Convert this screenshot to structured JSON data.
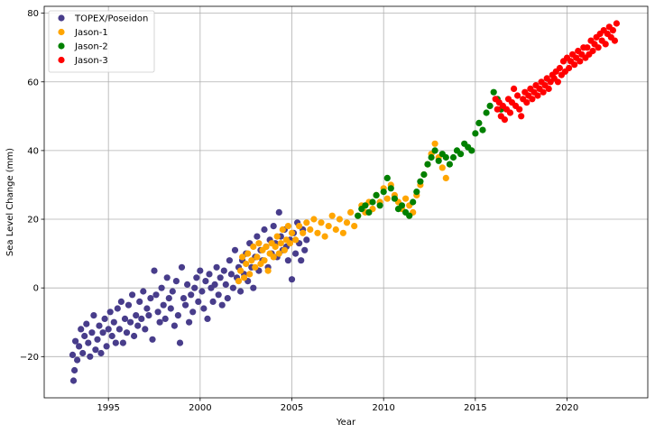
{
  "chart_data": {
    "type": "scatter",
    "title": "",
    "xlabel": "Year",
    "ylabel": "Sea Level Change (mm)",
    "xlim": [
      1991.5,
      2024.4
    ],
    "ylim": [
      -32,
      82
    ],
    "xticks": [
      1995,
      2000,
      2005,
      2010,
      2015,
      2020
    ],
    "yticks": [
      -20,
      0,
      20,
      40,
      60,
      80
    ],
    "grid": true,
    "legend_position": "top-left",
    "series": [
      {
        "name": "TOPEX/Poseidon",
        "color": "#483d8b",
        "x_range": [
          1993.0,
          2005.8
        ],
        "trend": "y = -21 + 2.8*(x-1993) approx., std 4 mm",
        "points": [
          [
            1993.05,
            -19.5
          ],
          [
            1993.1,
            -27
          ],
          [
            1993.15,
            -24
          ],
          [
            1993.2,
            -15.5
          ],
          [
            1993.3,
            -21
          ],
          [
            1993.4,
            -17
          ],
          [
            1993.5,
            -12
          ],
          [
            1993.6,
            -19
          ],
          [
            1993.7,
            -14
          ],
          [
            1993.8,
            -10.5
          ],
          [
            1993.9,
            -16
          ],
          [
            1994.0,
            -20
          ],
          [
            1994.1,
            -13
          ],
          [
            1994.2,
            -8
          ],
          [
            1994.3,
            -18
          ],
          [
            1994.4,
            -15
          ],
          [
            1994.5,
            -11
          ],
          [
            1994.6,
            -19
          ],
          [
            1994.7,
            -13
          ],
          [
            1994.8,
            -9
          ],
          [
            1994.9,
            -17
          ],
          [
            1995.0,
            -12
          ],
          [
            1995.1,
            -7
          ],
          [
            1995.2,
            -14
          ],
          [
            1995.3,
            -10
          ],
          [
            1995.4,
            -16
          ],
          [
            1995.5,
            -6
          ],
          [
            1995.6,
            -12
          ],
          [
            1995.7,
            -4
          ],
          [
            1995.8,
            -16
          ],
          [
            1995.9,
            -9
          ],
          [
            1996.0,
            -13
          ],
          [
            1996.1,
            -5
          ],
          [
            1996.2,
            -10
          ],
          [
            1996.3,
            -2
          ],
          [
            1996.4,
            -14
          ],
          [
            1996.5,
            -8
          ],
          [
            1996.6,
            -11
          ],
          [
            1996.7,
            -4
          ],
          [
            1996.8,
            -9
          ],
          [
            1996.9,
            -1
          ],
          [
            1997.0,
            -12
          ],
          [
            1997.1,
            -6
          ],
          [
            1997.2,
            -8
          ],
          [
            1997.3,
            -3
          ],
          [
            1997.4,
            -15
          ],
          [
            1997.5,
            5
          ],
          [
            1997.6,
            -2
          ],
          [
            1997.7,
            -7
          ],
          [
            1997.8,
            -10
          ],
          [
            1997.9,
            0
          ],
          [
            1998.0,
            -5
          ],
          [
            1998.1,
            -9
          ],
          [
            1998.2,
            3
          ],
          [
            1998.3,
            -3
          ],
          [
            1998.4,
            -6
          ],
          [
            1998.5,
            -1
          ],
          [
            1998.6,
            -11
          ],
          [
            1998.7,
            2
          ],
          [
            1998.8,
            -8
          ],
          [
            1998.9,
            -16
          ],
          [
            1999.0,
            6
          ],
          [
            1999.1,
            -3
          ],
          [
            1999.2,
            -5
          ],
          [
            1999.3,
            1
          ],
          [
            1999.4,
            -10
          ],
          [
            1999.5,
            -2
          ],
          [
            1999.6,
            -7
          ],
          [
            1999.7,
            0
          ],
          [
            1999.8,
            3
          ],
          [
            1999.9,
            -4
          ],
          [
            2000.0,
            5
          ],
          [
            2000.1,
            -1
          ],
          [
            2000.2,
            -6
          ],
          [
            2000.3,
            2
          ],
          [
            2000.4,
            -9
          ],
          [
            2000.5,
            4
          ],
          [
            2000.6,
            0
          ],
          [
            2000.7,
            -4
          ],
          [
            2000.8,
            1
          ],
          [
            2000.9,
            6
          ],
          [
            2001.0,
            -2
          ],
          [
            2001.1,
            3
          ],
          [
            2001.2,
            -5
          ],
          [
            2001.3,
            5
          ],
          [
            2001.4,
            1
          ],
          [
            2001.5,
            -3
          ],
          [
            2001.6,
            8
          ],
          [
            2001.7,
            4
          ],
          [
            2001.8,
            0
          ],
          [
            2001.9,
            11
          ],
          [
            2002.0,
            3
          ],
          [
            2002.1,
            6
          ],
          [
            2002.2,
            -1
          ],
          [
            2002.3,
            8
          ],
          [
            2002.4,
            4
          ],
          [
            2002.5,
            10
          ],
          [
            2002.6,
            2
          ],
          [
            2002.7,
            13
          ],
          [
            2002.8,
            6
          ],
          [
            2002.9,
            0
          ],
          [
            2003.0,
            9
          ],
          [
            2003.1,
            15
          ],
          [
            2003.2,
            5
          ],
          [
            2003.3,
            11
          ],
          [
            2003.4,
            8
          ],
          [
            2003.5,
            17
          ],
          [
            2003.6,
            12
          ],
          [
            2003.7,
            6
          ],
          [
            2003.8,
            14
          ],
          [
            2003.9,
            10
          ],
          [
            2004.0,
            18
          ],
          [
            2004.1,
            13
          ],
          [
            2004.2,
            9
          ],
          [
            2004.3,
            22
          ],
          [
            2004.4,
            15
          ],
          [
            2004.5,
            11
          ],
          [
            2004.6,
            17
          ],
          [
            2004.7,
            12
          ],
          [
            2004.8,
            8
          ],
          [
            2004.9,
            14
          ],
          [
            2005.0,
            2.5
          ],
          [
            2005.1,
            16
          ],
          [
            2005.2,
            10
          ],
          [
            2005.3,
            19
          ],
          [
            2005.4,
            13
          ],
          [
            2005.5,
            8
          ],
          [
            2005.6,
            17
          ],
          [
            2005.7,
            11
          ],
          [
            2005.8,
            14
          ]
        ]
      },
      {
        "name": "Jason-1",
        "color": "#ffa500",
        "x_range": [
          2002.0,
          2013.5
        ],
        "trend": "y = 5 + 2.6*(x-2002) approx., std 2.5 mm",
        "points": [
          [
            2002.1,
            2
          ],
          [
            2002.2,
            5
          ],
          [
            2002.3,
            9
          ],
          [
            2002.4,
            3
          ],
          [
            2002.5,
            7
          ],
          [
            2002.6,
            10
          ],
          [
            2002.7,
            4
          ],
          [
            2002.8,
            8
          ],
          [
            2002.9,
            12
          ],
          [
            2003.0,
            6
          ],
          [
            2003.1,
            9
          ],
          [
            2003.2,
            13
          ],
          [
            2003.3,
            7
          ],
          [
            2003.4,
            11
          ],
          [
            2003.5,
            8
          ],
          [
            2003.6,
            12
          ],
          [
            2003.7,
            5
          ],
          [
            2003.8,
            10
          ],
          [
            2003.9,
            13
          ],
          [
            2004.0,
            9
          ],
          [
            2004.1,
            12
          ],
          [
            2004.2,
            15
          ],
          [
            2004.3,
            10
          ],
          [
            2004.4,
            13
          ],
          [
            2004.5,
            17
          ],
          [
            2004.6,
            11
          ],
          [
            2004.7,
            14
          ],
          [
            2004.8,
            18
          ],
          [
            2004.9,
            13
          ],
          [
            2005.0,
            16
          ],
          [
            2005.2,
            14
          ],
          [
            2005.4,
            18
          ],
          [
            2005.6,
            16
          ],
          [
            2005.8,
            19
          ],
          [
            2006.0,
            17
          ],
          [
            2006.2,
            20
          ],
          [
            2006.4,
            16
          ],
          [
            2006.6,
            19
          ],
          [
            2006.8,
            15
          ],
          [
            2007.0,
            18
          ],
          [
            2007.2,
            21
          ],
          [
            2007.4,
            17
          ],
          [
            2007.6,
            20
          ],
          [
            2007.8,
            16
          ],
          [
            2008.0,
            19
          ],
          [
            2008.2,
            22
          ],
          [
            2008.4,
            18
          ],
          [
            2008.6,
            21
          ],
          [
            2008.8,
            24
          ],
          [
            2009.0,
            22
          ],
          [
            2009.2,
            25
          ],
          [
            2009.4,
            23
          ],
          [
            2009.6,
            27
          ],
          [
            2009.8,
            25
          ],
          [
            2010.0,
            29
          ],
          [
            2010.2,
            26
          ],
          [
            2010.4,
            30
          ],
          [
            2010.6,
            27
          ],
          [
            2010.8,
            25
          ],
          [
            2011.0,
            23
          ],
          [
            2011.2,
            26
          ],
          [
            2011.4,
            24
          ],
          [
            2011.6,
            22
          ],
          [
            2011.8,
            27
          ],
          [
            2012.0,
            30
          ],
          [
            2012.2,
            33
          ],
          [
            2012.4,
            36
          ],
          [
            2012.6,
            39
          ],
          [
            2012.8,
            42
          ],
          [
            2013.0,
            38
          ],
          [
            2013.2,
            35
          ],
          [
            2013.4,
            32
          ]
        ]
      },
      {
        "name": "Jason-2",
        "color": "#008000",
        "x_range": [
          2008.5,
          2016.8
        ],
        "trend": "y = 21 + 3.8*(x-2008.5) approx., std 2 mm",
        "points": [
          [
            2008.6,
            21
          ],
          [
            2008.8,
            23
          ],
          [
            2009.0,
            24
          ],
          [
            2009.2,
            22
          ],
          [
            2009.4,
            25
          ],
          [
            2009.6,
            27
          ],
          [
            2009.8,
            24
          ],
          [
            2010.0,
            28
          ],
          [
            2010.2,
            32
          ],
          [
            2010.4,
            29
          ],
          [
            2010.6,
            26
          ],
          [
            2010.8,
            23
          ],
          [
            2011.0,
            24
          ],
          [
            2011.2,
            22
          ],
          [
            2011.4,
            21
          ],
          [
            2011.6,
            25
          ],
          [
            2011.8,
            28
          ],
          [
            2012.0,
            31
          ],
          [
            2012.2,
            33
          ],
          [
            2012.4,
            36
          ],
          [
            2012.6,
            38
          ],
          [
            2012.8,
            40
          ],
          [
            2013.0,
            37
          ],
          [
            2013.2,
            39
          ],
          [
            2013.4,
            38
          ],
          [
            2013.6,
            36
          ],
          [
            2013.8,
            38
          ],
          [
            2014.0,
            40
          ],
          [
            2014.2,
            39
          ],
          [
            2014.4,
            42
          ],
          [
            2014.6,
            41
          ],
          [
            2014.8,
            40
          ],
          [
            2015.0,
            45
          ],
          [
            2015.2,
            48
          ],
          [
            2015.4,
            46
          ],
          [
            2015.6,
            51
          ],
          [
            2015.8,
            53
          ],
          [
            2016.0,
            57
          ],
          [
            2016.2,
            55
          ],
          [
            2016.4,
            52
          ]
        ]
      },
      {
        "name": "Jason-3",
        "color": "#ff0000",
        "x_range": [
          2016.0,
          2022.8
        ],
        "trend": "y = 53 + 3.3*(x-2016) approx., std 1.8 mm",
        "points": [
          [
            2016.1,
            55
          ],
          [
            2016.2,
            52
          ],
          [
            2016.3,
            54
          ],
          [
            2016.4,
            50
          ],
          [
            2016.5,
            53
          ],
          [
            2016.6,
            49
          ],
          [
            2016.7,
            52
          ],
          [
            2016.8,
            55
          ],
          [
            2016.9,
            51
          ],
          [
            2017.0,
            54
          ],
          [
            2017.1,
            58
          ],
          [
            2017.2,
            53
          ],
          [
            2017.3,
            56
          ],
          [
            2017.4,
            52
          ],
          [
            2017.5,
            50
          ],
          [
            2017.6,
            55
          ],
          [
            2017.7,
            57
          ],
          [
            2017.8,
            54
          ],
          [
            2017.9,
            56
          ],
          [
            2018.0,
            58
          ],
          [
            2018.1,
            55
          ],
          [
            2018.2,
            57
          ],
          [
            2018.3,
            59
          ],
          [
            2018.4,
            56
          ],
          [
            2018.5,
            58
          ],
          [
            2018.6,
            60
          ],
          [
            2018.7,
            57
          ],
          [
            2018.8,
            59
          ],
          [
            2018.9,
            61
          ],
          [
            2019.0,
            58
          ],
          [
            2019.1,
            60
          ],
          [
            2019.2,
            62
          ],
          [
            2019.3,
            61
          ],
          [
            2019.4,
            63
          ],
          [
            2019.5,
            60
          ],
          [
            2019.6,
            64
          ],
          [
            2019.7,
            62
          ],
          [
            2019.8,
            66
          ],
          [
            2019.9,
            63
          ],
          [
            2020.0,
            67
          ],
          [
            2020.1,
            64
          ],
          [
            2020.2,
            66
          ],
          [
            2020.3,
            68
          ],
          [
            2020.4,
            65
          ],
          [
            2020.5,
            67
          ],
          [
            2020.6,
            69
          ],
          [
            2020.7,
            66
          ],
          [
            2020.8,
            68
          ],
          [
            2020.9,
            70
          ],
          [
            2021.0,
            67
          ],
          [
            2021.1,
            70
          ],
          [
            2021.2,
            68
          ],
          [
            2021.3,
            72
          ],
          [
            2021.4,
            69
          ],
          [
            2021.5,
            71
          ],
          [
            2021.6,
            73
          ],
          [
            2021.7,
            70
          ],
          [
            2021.8,
            74
          ],
          [
            2021.9,
            72
          ],
          [
            2022.0,
            75
          ],
          [
            2022.1,
            71
          ],
          [
            2022.2,
            74
          ],
          [
            2022.3,
            76
          ],
          [
            2022.4,
            73
          ],
          [
            2022.5,
            75
          ],
          [
            2022.6,
            72
          ],
          [
            2022.7,
            77
          ]
        ]
      }
    ]
  }
}
